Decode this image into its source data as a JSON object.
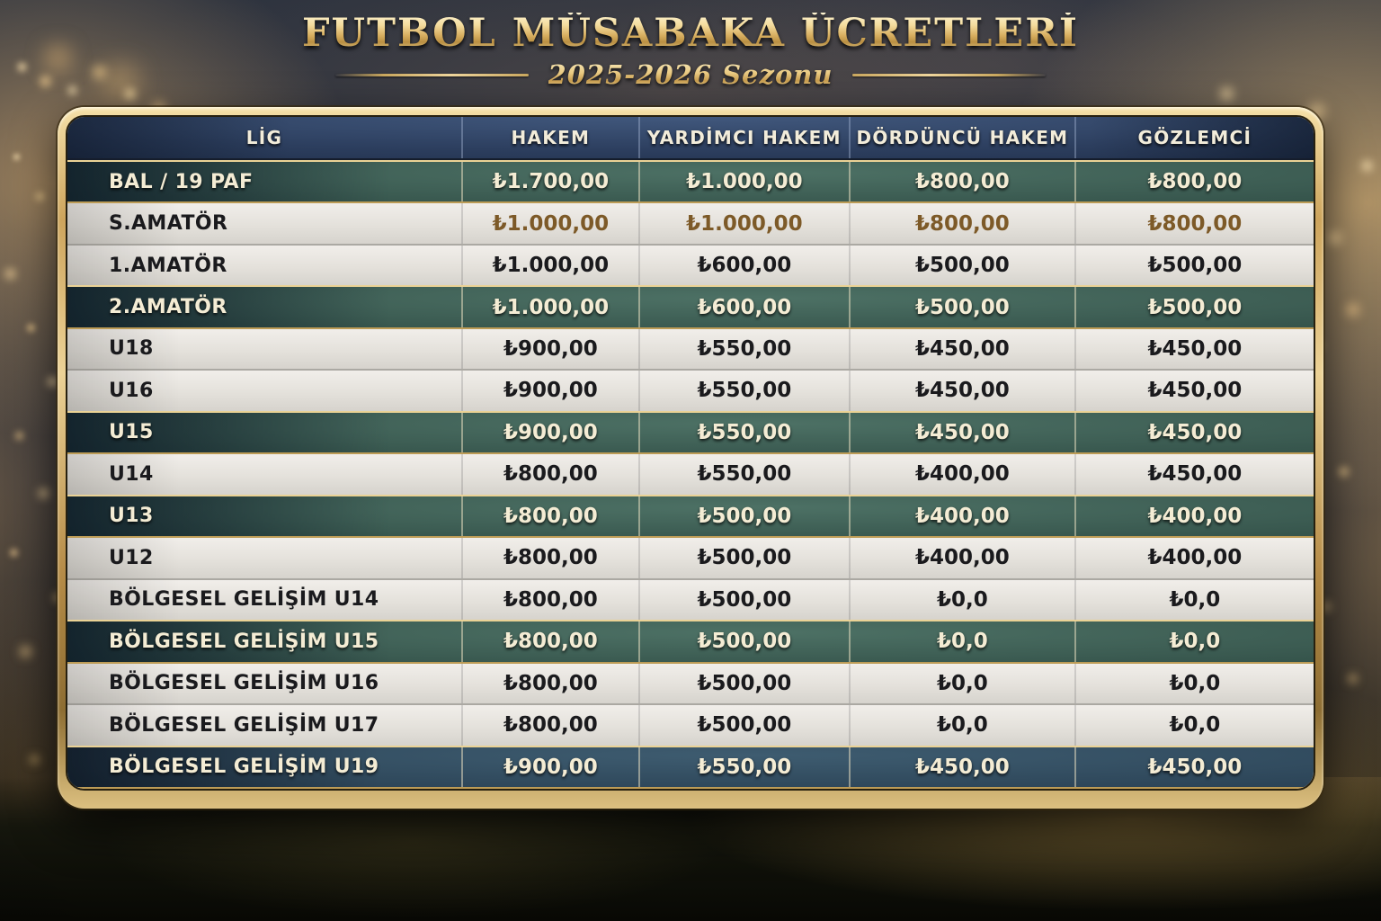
{
  "header": {
    "title": "FUTBOL MÜSABAKA ÜCRETLERİ",
    "subtitle": "2025-2026 Sezonu"
  },
  "chart_data": {
    "type": "table",
    "title": "FUTBOL MÜSABAKA ÜCRETLERİ",
    "subtitle": "2025-2026 Sezonu",
    "columns": [
      "LİG",
      "HAKEM",
      "YARDİMCI HAKEM",
      "DÖRDÜNCÜ HAKEM",
      "GÖZLEMCİ"
    ],
    "rows": [
      {
        "league": "BAL / 19 PAF",
        "values": [
          "₺1.700,00",
          "₺1.000,00",
          "₺800,00",
          "₺800,00"
        ],
        "highlight": "green"
      },
      {
        "league": "S.AMATÖR",
        "values": [
          "₺1.000,00",
          "₺1.000,00",
          "₺800,00",
          "₺800,00"
        ],
        "highlight": "bronze"
      },
      {
        "league": "1.AMATÖR",
        "values": [
          "₺1.000,00",
          "₺600,00",
          "₺500,00",
          "₺500,00"
        ],
        "highlight": "light"
      },
      {
        "league": "2.AMATÖR",
        "values": [
          "₺1.000,00",
          "₺600,00",
          "₺500,00",
          "₺500,00"
        ],
        "highlight": "green"
      },
      {
        "league": "U18",
        "values": [
          "₺900,00",
          "₺550,00",
          "₺450,00",
          "₺450,00"
        ],
        "highlight": "light"
      },
      {
        "league": "U16",
        "values": [
          "₺900,00",
          "₺550,00",
          "₺450,00",
          "₺450,00"
        ],
        "highlight": "light"
      },
      {
        "league": "U15",
        "values": [
          "₺900,00",
          "₺550,00",
          "₺450,00",
          "₺450,00"
        ],
        "highlight": "green"
      },
      {
        "league": "U14",
        "values": [
          "₺800,00",
          "₺550,00",
          "₺400,00",
          "₺450,00"
        ],
        "highlight": "light"
      },
      {
        "league": "U13",
        "values": [
          "₺800,00",
          "₺500,00",
          "₺400,00",
          "₺400,00"
        ],
        "highlight": "green"
      },
      {
        "league": "U12",
        "values": [
          "₺800,00",
          "₺500,00",
          "₺400,00",
          "₺400,00"
        ],
        "highlight": "light"
      },
      {
        "league": "BÖLGESEL GELİŞİM U14",
        "values": [
          "₺800,00",
          "₺500,00",
          "₺0,0",
          "₺0,0"
        ],
        "highlight": "light"
      },
      {
        "league": "BÖLGESEL GELİŞİM U15",
        "values": [
          "₺800,00",
          "₺500,00",
          "₺0,0",
          "₺0,0"
        ],
        "highlight": "green"
      },
      {
        "league": "BÖLGESEL GELİŞİM U16",
        "values": [
          "₺800,00",
          "₺500,00",
          "₺0,0",
          "₺0,0"
        ],
        "highlight": "light"
      },
      {
        "league": "BÖLGESEL GELİŞİM U17",
        "values": [
          "₺800,00",
          "₺500,00",
          "₺0,0",
          "₺0,0"
        ],
        "highlight": "light"
      },
      {
        "league": "BÖLGESEL GELİŞİM U19",
        "values": [
          "₺900,00",
          "₺550,00",
          "₺450,00",
          "₺450,00"
        ],
        "highlight": "navy"
      }
    ]
  },
  "colors": {
    "gold_frame": "#d8b873",
    "header_navy": "#2c3e5e",
    "row_green": "#37564d",
    "row_navy": "#2b4356",
    "row_light": "#e8e5df",
    "bronze_value_text": "#7d5a28",
    "cream_text": "#f4ecd4",
    "dark_text": "#1a1a1d"
  }
}
